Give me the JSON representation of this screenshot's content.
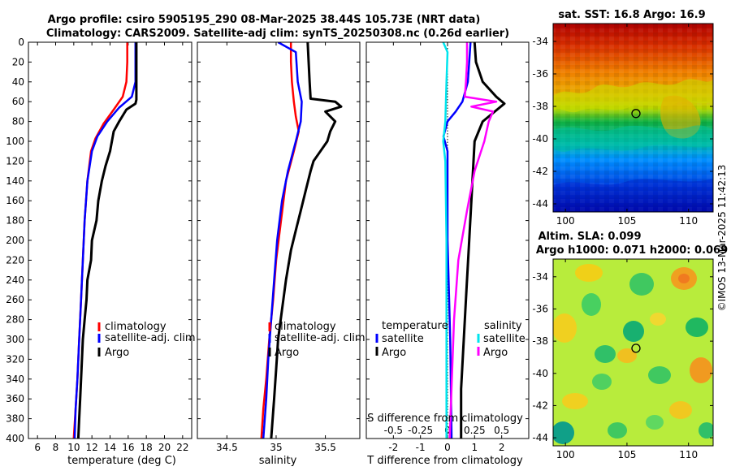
{
  "header": {
    "title_line1": "Argo profile: csiro 5905195_290 08-Mar-2025 38.44S 105.73E (NRT data)",
    "title_line2": "Climatology: CARS2009. Satellite-adj clim: synTS_20250308.nc (0.26d earlier)"
  },
  "colors": {
    "climatology": "#ff0000",
    "satellite": "#0000ff",
    "argo": "#000000",
    "s_satellite": "#00e5ee",
    "s_argo": "#ff00ff"
  },
  "chart_data": [
    {
      "id": "temperature_profile",
      "type": "line",
      "xlabel": "temperature (deg C)",
      "xlim": [
        5,
        23
      ],
      "xticks": [
        6,
        8,
        10,
        12,
        14,
        16,
        18,
        20,
        22
      ],
      "ylim": [
        0,
        400
      ],
      "yticks": [
        0,
        20,
        40,
        60,
        80,
        100,
        120,
        140,
        160,
        180,
        200,
        220,
        240,
        260,
        280,
        300,
        320,
        340,
        360,
        380,
        400
      ],
      "y_inverted": true,
      "legend": [
        "climatology",
        "satellite-adj. clim",
        "Argo"
      ],
      "legend_location": "lower-right",
      "series": [
        {
          "name": "climatology",
          "color_key": "climatology",
          "points": [
            [
              15.9,
              0
            ],
            [
              15.9,
              20
            ],
            [
              15.8,
              40
            ],
            [
              15.4,
              55
            ],
            [
              14.4,
              68
            ],
            [
              13.3,
              82
            ],
            [
              12.4,
              97
            ],
            [
              11.9,
              110
            ],
            [
              11.5,
              140
            ],
            [
              11.2,
              180
            ],
            [
              11.0,
              220
            ],
            [
              10.8,
              260
            ],
            [
              10.6,
              300
            ],
            [
              10.4,
              340
            ],
            [
              10.2,
              370
            ],
            [
              10.0,
              400
            ]
          ]
        },
        {
          "name": "satellite-adj. clim",
          "color_key": "satellite",
          "points": [
            [
              16.8,
              0
            ],
            [
              16.8,
              20
            ],
            [
              16.8,
              40
            ],
            [
              16.4,
              55
            ],
            [
              15.0,
              66
            ],
            [
              13.7,
              80
            ],
            [
              12.6,
              95
            ],
            [
              12.0,
              110
            ],
            [
              11.5,
              140
            ],
            [
              11.2,
              180
            ],
            [
              11.0,
              220
            ],
            [
              10.8,
              260
            ],
            [
              10.6,
              300
            ],
            [
              10.4,
              340
            ],
            [
              10.2,
              370
            ],
            [
              10.1,
              400
            ]
          ]
        },
        {
          "name": "Argo",
          "color_key": "argo",
          "points": [
            [
              16.9,
              0
            ],
            [
              16.9,
              20
            ],
            [
              16.9,
              40
            ],
            [
              16.9,
              58
            ],
            [
              16.8,
              62
            ],
            [
              15.8,
              68
            ],
            [
              15.0,
              80
            ],
            [
              14.4,
              90
            ],
            [
              14.0,
              110
            ],
            [
              13.5,
              125
            ],
            [
              13.1,
              140
            ],
            [
              12.7,
              160
            ],
            [
              12.5,
              180
            ],
            [
              12.0,
              200
            ],
            [
              11.9,
              220
            ],
            [
              11.5,
              240
            ],
            [
              11.4,
              260
            ],
            [
              11.2,
              280
            ],
            [
              11.0,
              300
            ],
            [
              10.9,
              320
            ],
            [
              10.8,
              340
            ],
            [
              10.7,
              360
            ],
            [
              10.6,
              380
            ],
            [
              10.5,
              400
            ]
          ]
        }
      ]
    },
    {
      "id": "salinity_profile",
      "type": "line",
      "xlabel": "salinity",
      "xlim": [
        34.2,
        35.85
      ],
      "xticks": [
        34.5,
        35,
        35.5
      ],
      "ylim": [
        0,
        400
      ],
      "y_inverted": true,
      "legend": [
        "climatology",
        "satellite-adj. clim",
        "Argo"
      ],
      "legend_location": "lower-right",
      "series": [
        {
          "name": "climatology",
          "color_key": "climatology",
          "points": [
            [
              35.15,
              0
            ],
            [
              35.15,
              20
            ],
            [
              35.16,
              40
            ],
            [
              35.18,
              60
            ],
            [
              35.2,
              75
            ],
            [
              35.23,
              90
            ],
            [
              35.18,
              110
            ],
            [
              35.1,
              140
            ],
            [
              35.05,
              180
            ],
            [
              35.0,
              220
            ],
            [
              34.97,
              260
            ],
            [
              34.93,
              300
            ],
            [
              34.9,
              340
            ],
            [
              34.87,
              370
            ],
            [
              34.85,
              400
            ]
          ]
        },
        {
          "name": "satellite-adj. clim",
          "color_key": "satellite",
          "points": [
            [
              35.02,
              0
            ],
            [
              35.2,
              10
            ],
            [
              35.22,
              40
            ],
            [
              35.26,
              60
            ],
            [
              35.25,
              80
            ],
            [
              35.2,
              100
            ],
            [
              35.12,
              130
            ],
            [
              35.06,
              160
            ],
            [
              35.01,
              200
            ],
            [
              34.98,
              240
            ],
            [
              34.95,
              280
            ],
            [
              34.92,
              320
            ],
            [
              34.9,
              360
            ],
            [
              34.87,
              400
            ]
          ]
        },
        {
          "name": "Argo",
          "color_key": "argo",
          "points": [
            [
              35.32,
              0
            ],
            [
              35.33,
              20
            ],
            [
              35.34,
              40
            ],
            [
              35.35,
              57
            ],
            [
              35.6,
              60
            ],
            [
              35.66,
              65
            ],
            [
              35.5,
              70
            ],
            [
              35.6,
              80
            ],
            [
              35.55,
              90
            ],
            [
              35.52,
              100
            ],
            [
              35.45,
              110
            ],
            [
              35.38,
              120
            ],
            [
              35.35,
              130
            ],
            [
              35.3,
              150
            ],
            [
              35.25,
              170
            ],
            [
              35.2,
              190
            ],
            [
              35.15,
              210
            ],
            [
              35.1,
              240
            ],
            [
              35.06,
              270
            ],
            [
              35.02,
              300
            ],
            [
              35.0,
              330
            ],
            [
              34.98,
              360
            ],
            [
              34.95,
              400
            ]
          ]
        }
      ]
    },
    {
      "id": "difference_profile",
      "type": "line",
      "xlabel": "T difference from climatology",
      "x2label": "S difference from climatology",
      "xlim": [
        -3,
        3
      ],
      "xticks": [
        -2,
        -1,
        0,
        1,
        2
      ],
      "x2lim": [
        -0.75,
        0.75
      ],
      "x2ticks": [
        -0.5,
        -0.25,
        0,
        0.25,
        0.5
      ],
      "x2ticklabels": [
        "-0.5",
        "-0.25",
        "0",
        "0.25",
        "0.5"
      ],
      "ylim": [
        0,
        400
      ],
      "y_inverted": true,
      "legend_temperature_title": "temperature",
      "legend_salinity_title": "salinity",
      "legend": [
        "satellite",
        "Argo",
        "satellite",
        "Argo"
      ],
      "legend_location": "lower",
      "series": [
        {
          "name": "T satellite",
          "color_key": "satellite",
          "points": [
            [
              0.85,
              0
            ],
            [
              0.8,
              20
            ],
            [
              0.75,
              40
            ],
            [
              0.55,
              60
            ],
            [
              0.3,
              70
            ],
            [
              0.0,
              80
            ],
            [
              -0.15,
              95
            ],
            [
              0.0,
              110
            ],
            [
              0.0,
              200
            ],
            [
              0.1,
              300
            ],
            [
              0.15,
              400
            ]
          ]
        },
        {
          "name": "T Argo",
          "color_key": "argo",
          "points": [
            [
              1.0,
              0
            ],
            [
              1.05,
              20
            ],
            [
              1.3,
              40
            ],
            [
              1.8,
              55
            ],
            [
              2.1,
              62
            ],
            [
              1.3,
              80
            ],
            [
              1.0,
              100
            ],
            [
              0.9,
              150
            ],
            [
              0.8,
              200
            ],
            [
              0.7,
              250
            ],
            [
              0.6,
              300
            ],
            [
              0.5,
              350
            ],
            [
              0.5,
              400
            ]
          ]
        },
        {
          "name": "S satellite",
          "color_key": "s_satellite",
          "points": [
            [
              -0.04,
              0
            ],
            [
              0.0,
              10
            ],
            [
              -0.01,
              40
            ],
            [
              -0.02,
              80
            ],
            [
              -0.04,
              100
            ],
            [
              -0.02,
              120
            ],
            [
              -0.01,
              200
            ],
            [
              -0.01,
              300
            ],
            [
              -0.01,
              400
            ]
          ]
        },
        {
          "name": "S Argo",
          "color_key": "s_argo",
          "points": [
            [
              0.18,
              0
            ],
            [
              0.18,
              20
            ],
            [
              0.17,
              40
            ],
            [
              0.16,
              55
            ],
            [
              0.45,
              60
            ],
            [
              0.22,
              65
            ],
            [
              0.42,
              70
            ],
            [
              0.38,
              80
            ],
            [
              0.34,
              100
            ],
            [
              0.25,
              130
            ],
            [
              0.18,
              170
            ],
            [
              0.1,
              220
            ],
            [
              0.06,
              280
            ],
            [
              0.04,
              340
            ],
            [
              0.02,
              400
            ]
          ]
        }
      ]
    },
    {
      "id": "sst_map",
      "type": "heatmap",
      "title": "sat. SST: 16.8 Argo: 16.9",
      "xlim": [
        99,
        112
      ],
      "xticks": [
        100,
        105,
        110
      ],
      "ylim": [
        -44.5,
        -32.9
      ],
      "yticks": [
        -34,
        -36,
        -38,
        -40,
        -42,
        -44
      ],
      "argo_marker": {
        "lon": 105.73,
        "lat": -38.44
      }
    },
    {
      "id": "sla_map",
      "type": "heatmap",
      "title_line1": "Altim. SLA: 0.099",
      "title_line2": "Argo h1000: 0.071 h2000: 0.069",
      "xlim": [
        99,
        112
      ],
      "xticks": [
        100,
        105,
        110
      ],
      "ylim": [
        -44.5,
        -32.9
      ],
      "yticks": [
        -34,
        -36,
        -38,
        -40,
        -42,
        -44
      ],
      "argo_marker": {
        "lon": 105.73,
        "lat": -38.44
      }
    }
  ],
  "watermark": "©IMOS 13-Mar-2025 11:42:13"
}
